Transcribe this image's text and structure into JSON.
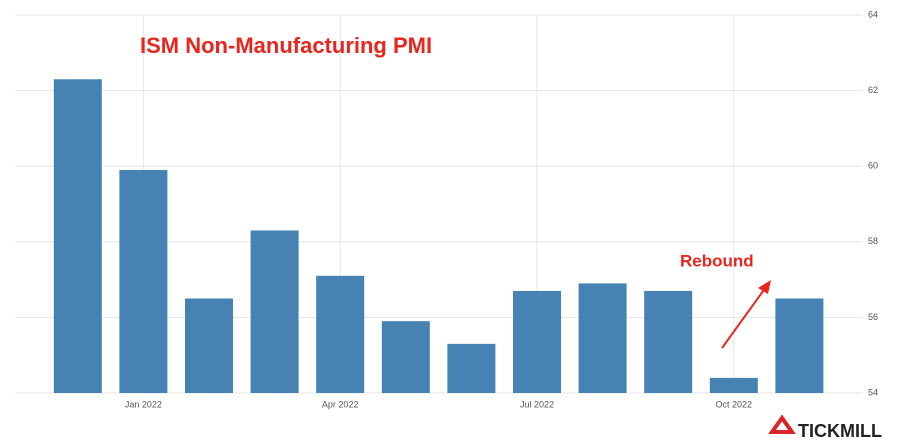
{
  "chart_data": {
    "type": "bar",
    "title": "ISM Non-Manufacturing PMI",
    "categories": [
      null,
      "Jan 2022",
      null,
      null,
      "Apr 2022",
      null,
      null,
      "Jul 2022",
      null,
      null,
      "Oct 2022",
      null
    ],
    "values": [
      62.3,
      59.9,
      56.5,
      58.3,
      57.1,
      55.9,
      55.3,
      56.7,
      56.9,
      56.7,
      54.4,
      56.5
    ],
    "color": "#4682b4",
    "ylim": [
      54,
      64
    ],
    "yticks": [
      54,
      56,
      58,
      60,
      62,
      64
    ],
    "grid": true,
    "annotation": "Rebound",
    "logo": "TICKMILL"
  }
}
